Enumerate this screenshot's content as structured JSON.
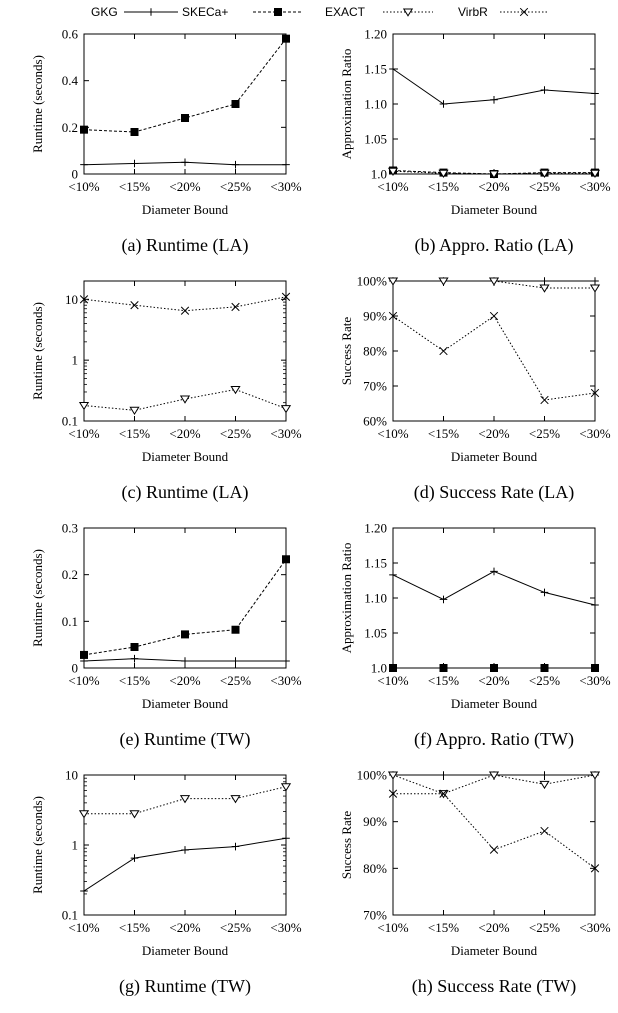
{
  "legend": [
    {
      "name": "GKG",
      "dash": "none",
      "marker": "plus"
    },
    {
      "name": "SKECa+",
      "dash": "3,2",
      "marker": "square"
    },
    {
      "name": "EXACT",
      "dash": "1.5,2",
      "marker": "triangle"
    },
    {
      "name": "VirbR",
      "dash": "1.5,2",
      "marker": "x"
    }
  ],
  "chart_data": [
    {
      "type": "line",
      "caption": "(a) Runtime (LA)",
      "xlabel": "Diameter Bound",
      "ylabel": "Runtime (seconds)",
      "categories": [
        "<10%",
        "<15%",
        "<20%",
        "<25%",
        "<30%"
      ],
      "scale": "linear",
      "ylim": [
        0,
        0.6
      ],
      "yticks": [
        0,
        0.2,
        0.4,
        0.6
      ],
      "yticklabels": [
        "0",
        "0.2",
        "0.4",
        "0.6"
      ],
      "series": [
        {
          "name": "GKG",
          "values": [
            0.04,
            0.045,
            0.05,
            0.04,
            0.04
          ]
        },
        {
          "name": "SKECa+",
          "values": [
            0.19,
            0.18,
            0.24,
            0.3,
            0.58
          ]
        }
      ]
    },
    {
      "type": "line",
      "caption": "(b) Appro. Ratio (LA)",
      "xlabel": "Diameter Bound",
      "ylabel": "Approximation Ratio",
      "categories": [
        "<10%",
        "<15%",
        "<20%",
        "<25%",
        "<30%"
      ],
      "scale": "linear",
      "ylim": [
        1.0,
        1.2
      ],
      "yticks": [
        1.0,
        1.05,
        1.1,
        1.15,
        1.2
      ],
      "yticklabels": [
        "1.0",
        "1.05",
        "1.10",
        "1.15",
        "1.20"
      ],
      "series": [
        {
          "name": "GKG",
          "values": [
            1.15,
            1.1,
            1.106,
            1.12,
            1.115
          ]
        },
        {
          "name": "SKECa+",
          "values": [
            1.005,
            1.002,
            1.0,
            1.002,
            1.002
          ]
        },
        {
          "name": "EXACT",
          "values": [
            1.004,
            1.001,
            1.0,
            1.001,
            1.001
          ]
        }
      ]
    },
    {
      "type": "line",
      "caption": "(c) Runtime (LA)",
      "xlabel": "Diameter Bound",
      "ylabel": "Runtime (seconds)",
      "categories": [
        "<10%",
        "<15%",
        "<20%",
        "<25%",
        "<30%"
      ],
      "scale": "log",
      "ylim": [
        0.1,
        20
      ],
      "yticks": [
        0.1,
        1,
        10
      ],
      "yticklabels": [
        "0.1",
        "1",
        "10"
      ],
      "series": [
        {
          "name": "VirbR",
          "values": [
            10,
            8,
            6.5,
            7.5,
            11
          ]
        },
        {
          "name": "EXACT",
          "values": [
            0.18,
            0.15,
            0.23,
            0.33,
            0.16
          ]
        }
      ]
    },
    {
      "type": "line",
      "caption": "(d) Success Rate (LA)",
      "xlabel": "Diameter Bound",
      "ylabel": "Success Rate",
      "categories": [
        "<10%",
        "<15%",
        "<20%",
        "<25%",
        "<30%"
      ],
      "scale": "linear",
      "ylim": [
        60,
        100
      ],
      "yticks": [
        60,
        70,
        80,
        90,
        100
      ],
      "yticklabels": [
        "60%",
        "70%",
        "80%",
        "90%",
        "100%"
      ],
      "series": [
        {
          "name": "GKG",
          "values": [
            100,
            100,
            100,
            100,
            100
          ]
        },
        {
          "name": "EXACT",
          "values": [
            100,
            100,
            100,
            98,
            98
          ]
        },
        {
          "name": "VirbR",
          "values": [
            90,
            80,
            90,
            66,
            68
          ]
        }
      ]
    },
    {
      "type": "line",
      "caption": "(e) Runtime (TW)",
      "xlabel": "Diameter Bound",
      "ylabel": "Runtime (seconds)",
      "categories": [
        "<10%",
        "<15%",
        "<20%",
        "<25%",
        "<30%"
      ],
      "scale": "linear",
      "ylim": [
        0,
        0.3
      ],
      "yticks": [
        0,
        0.1,
        0.2,
        0.3
      ],
      "yticklabels": [
        "0",
        "0.1",
        "0.2",
        "0.3"
      ],
      "series": [
        {
          "name": "GKG",
          "values": [
            0.015,
            0.02,
            0.015,
            0.015,
            0.015
          ]
        },
        {
          "name": "SKECa+",
          "values": [
            0.028,
            0.045,
            0.072,
            0.082,
            0.233
          ]
        }
      ]
    },
    {
      "type": "line",
      "caption": "(f) Appro. Ratio (TW)",
      "xlabel": "Diameter Bound",
      "ylabel": "Approximation Ratio",
      "categories": [
        "<10%",
        "<15%",
        "<20%",
        "<25%",
        "<30%"
      ],
      "scale": "linear",
      "ylim": [
        1.0,
        1.2
      ],
      "yticks": [
        1.0,
        1.05,
        1.1,
        1.15,
        1.2
      ],
      "yticklabels": [
        "1.0",
        "1.05",
        "1.10",
        "1.15",
        "1.20"
      ],
      "series": [
        {
          "name": "GKG",
          "values": [
            1.133,
            1.098,
            1.138,
            1.108,
            1.09
          ]
        },
        {
          "name": "SKECa+",
          "values": [
            1.0,
            1.0,
            1.0,
            1.0,
            1.0
          ]
        }
      ]
    },
    {
      "type": "line",
      "caption": "(g) Runtime (TW)",
      "xlabel": "Diameter Bound",
      "ylabel": "Runtime (seconds)",
      "categories": [
        "<10%",
        "<15%",
        "<20%",
        "<25%",
        "<30%"
      ],
      "scale": "log",
      "ylim": [
        0.1,
        10
      ],
      "yticks": [
        0.1,
        1,
        10
      ],
      "yticklabels": [
        "0.1",
        "1",
        "10"
      ],
      "series": [
        {
          "name": "GKG",
          "values": [
            0.22,
            0.65,
            0.85,
            0.95,
            1.25
          ]
        },
        {
          "name": "EXACT",
          "values": [
            2.8,
            2.8,
            4.6,
            4.6,
            6.8
          ]
        }
      ]
    },
    {
      "type": "line",
      "caption": "(h) Success Rate (TW)",
      "xlabel": "Diameter Bound",
      "ylabel": "Success Rate",
      "categories": [
        "<10%",
        "<15%",
        "<20%",
        "<25%",
        "<30%"
      ],
      "scale": "linear",
      "ylim": [
        70,
        100
      ],
      "yticks": [
        70,
        80,
        90,
        100
      ],
      "yticklabels": [
        "70%",
        "80%",
        "90%",
        "100%"
      ],
      "series": [
        {
          "name": "GKG",
          "values": [
            100,
            100,
            100,
            100,
            100
          ]
        },
        {
          "name": "EXACT",
          "values": [
            100,
            96,
            100,
            98,
            100
          ]
        },
        {
          "name": "VirbR",
          "values": [
            96,
            96,
            84,
            88,
            80
          ]
        }
      ]
    }
  ]
}
